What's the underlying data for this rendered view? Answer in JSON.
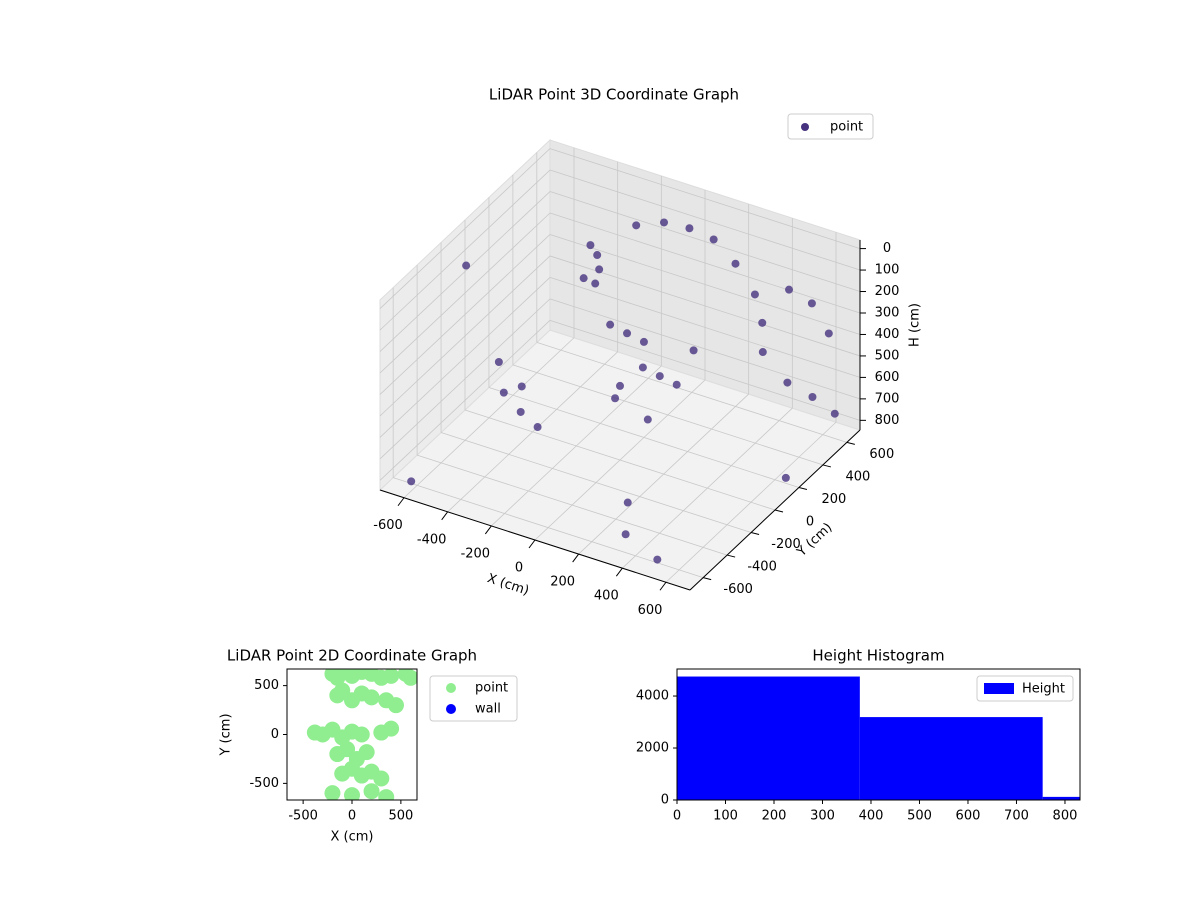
{
  "chart_data": [
    {
      "type": "scatter3d",
      "title": "LiDAR Point 3D Coordinate Graph",
      "x_label": "X (cm)",
      "y_label": "Y (cm)",
      "z_label": "H (cm)",
      "xlim": [
        -710,
        710
      ],
      "ylim": [
        -710,
        710
      ],
      "zlim": [
        -40,
        845
      ],
      "z_inverted": true,
      "xticks": [
        -600,
        -400,
        -200,
        0,
        200,
        400,
        600
      ],
      "yticks": [
        -600,
        -400,
        -200,
        0,
        200,
        400,
        600
      ],
      "zticks": [
        0,
        100,
        200,
        300,
        400,
        500,
        600,
        700,
        800
      ],
      "grid": true,
      "legend": "upper right",
      "series": [
        {
          "name": "point",
          "color": "#46327e",
          "x": [
            -300,
            -280,
            -260,
            -320,
            -300,
            -100,
            -50,
            0,
            50,
            100,
            150,
            0,
            -50,
            100,
            200,
            -200,
            -100,
            0,
            100,
            200,
            300,
            350,
            380,
            -500,
            -450,
            -400,
            -350,
            -450,
            500,
            550,
            600,
            520,
            580,
            -650,
            500,
            300,
            -600,
            600,
            200,
            650
          ],
          "y": [
            300,
            320,
            300,
            280,
            340,
            100,
            150,
            200,
            100,
            150,
            200,
            0,
            50,
            50,
            250,
            500,
            550,
            580,
            600,
            600,
            580,
            550,
            500,
            -100,
            -150,
            -100,
            -50,
            0,
            500,
            600,
            650,
            450,
            550,
            -100,
            -600,
            -500,
            -650,
            700,
            -300,
            200
          ],
          "z": [
            100,
            150,
            200,
            250,
            300,
            300,
            350,
            400,
            450,
            500,
            550,
            500,
            600,
            650,
            400,
            80,
            60,
            70,
            100,
            180,
            280,
            380,
            480,
            500,
            600,
            700,
            780,
            650,
            150,
            250,
            400,
            550,
            650,
            100,
            830,
            830,
            800,
            800,
            820,
            820
          ]
        }
      ]
    },
    {
      "type": "scatter",
      "title": "LiDAR Point 2D Coordinate Graph",
      "x_label": "X (cm)",
      "y_label": "Y (cm)",
      "xlim": [
        -665,
        665
      ],
      "ylim": [
        -670,
        670
      ],
      "xticks": [
        -500,
        0,
        500
      ],
      "yticks": [
        -500,
        0,
        500
      ],
      "legend": "outside right",
      "series": [
        {
          "name": "point",
          "color": "#90ee90",
          "x": [
            -200,
            -150,
            -100,
            0,
            100,
            200,
            300,
            400,
            550,
            600,
            -150,
            -100,
            0,
            100,
            200,
            350,
            450,
            -380,
            -300,
            -200,
            -100,
            0,
            100,
            300,
            400,
            -150,
            -50,
            50,
            150,
            -100,
            0,
            100,
            200,
            300,
            -200,
            0,
            200,
            350
          ],
          "y": [
            620,
            580,
            650,
            600,
            640,
            620,
            580,
            600,
            620,
            580,
            400,
            450,
            350,
            420,
            380,
            350,
            300,
            20,
            0,
            50,
            -30,
            30,
            0,
            20,
            60,
            -200,
            -150,
            -250,
            -180,
            -400,
            -350,
            -420,
            -380,
            -450,
            -600,
            -620,
            -580,
            -640
          ]
        },
        {
          "name": "wall",
          "color": "#0000ff",
          "x": [],
          "y": []
        }
      ]
    },
    {
      "type": "histogram",
      "title": "Height Histogram",
      "bins": [
        0,
        377,
        754,
        831
      ],
      "xlim": [
        0,
        831
      ],
      "ylim": [
        0,
        5040
      ],
      "xticks": [
        0,
        100,
        200,
        300,
        400,
        500,
        600,
        700,
        800
      ],
      "yticks": [
        0,
        2000,
        4000
      ],
      "legend": "upper right",
      "series": [
        {
          "name": "Height",
          "color": "#0000ff",
          "values": [
            4750,
            3190,
            120
          ]
        }
      ]
    }
  ]
}
